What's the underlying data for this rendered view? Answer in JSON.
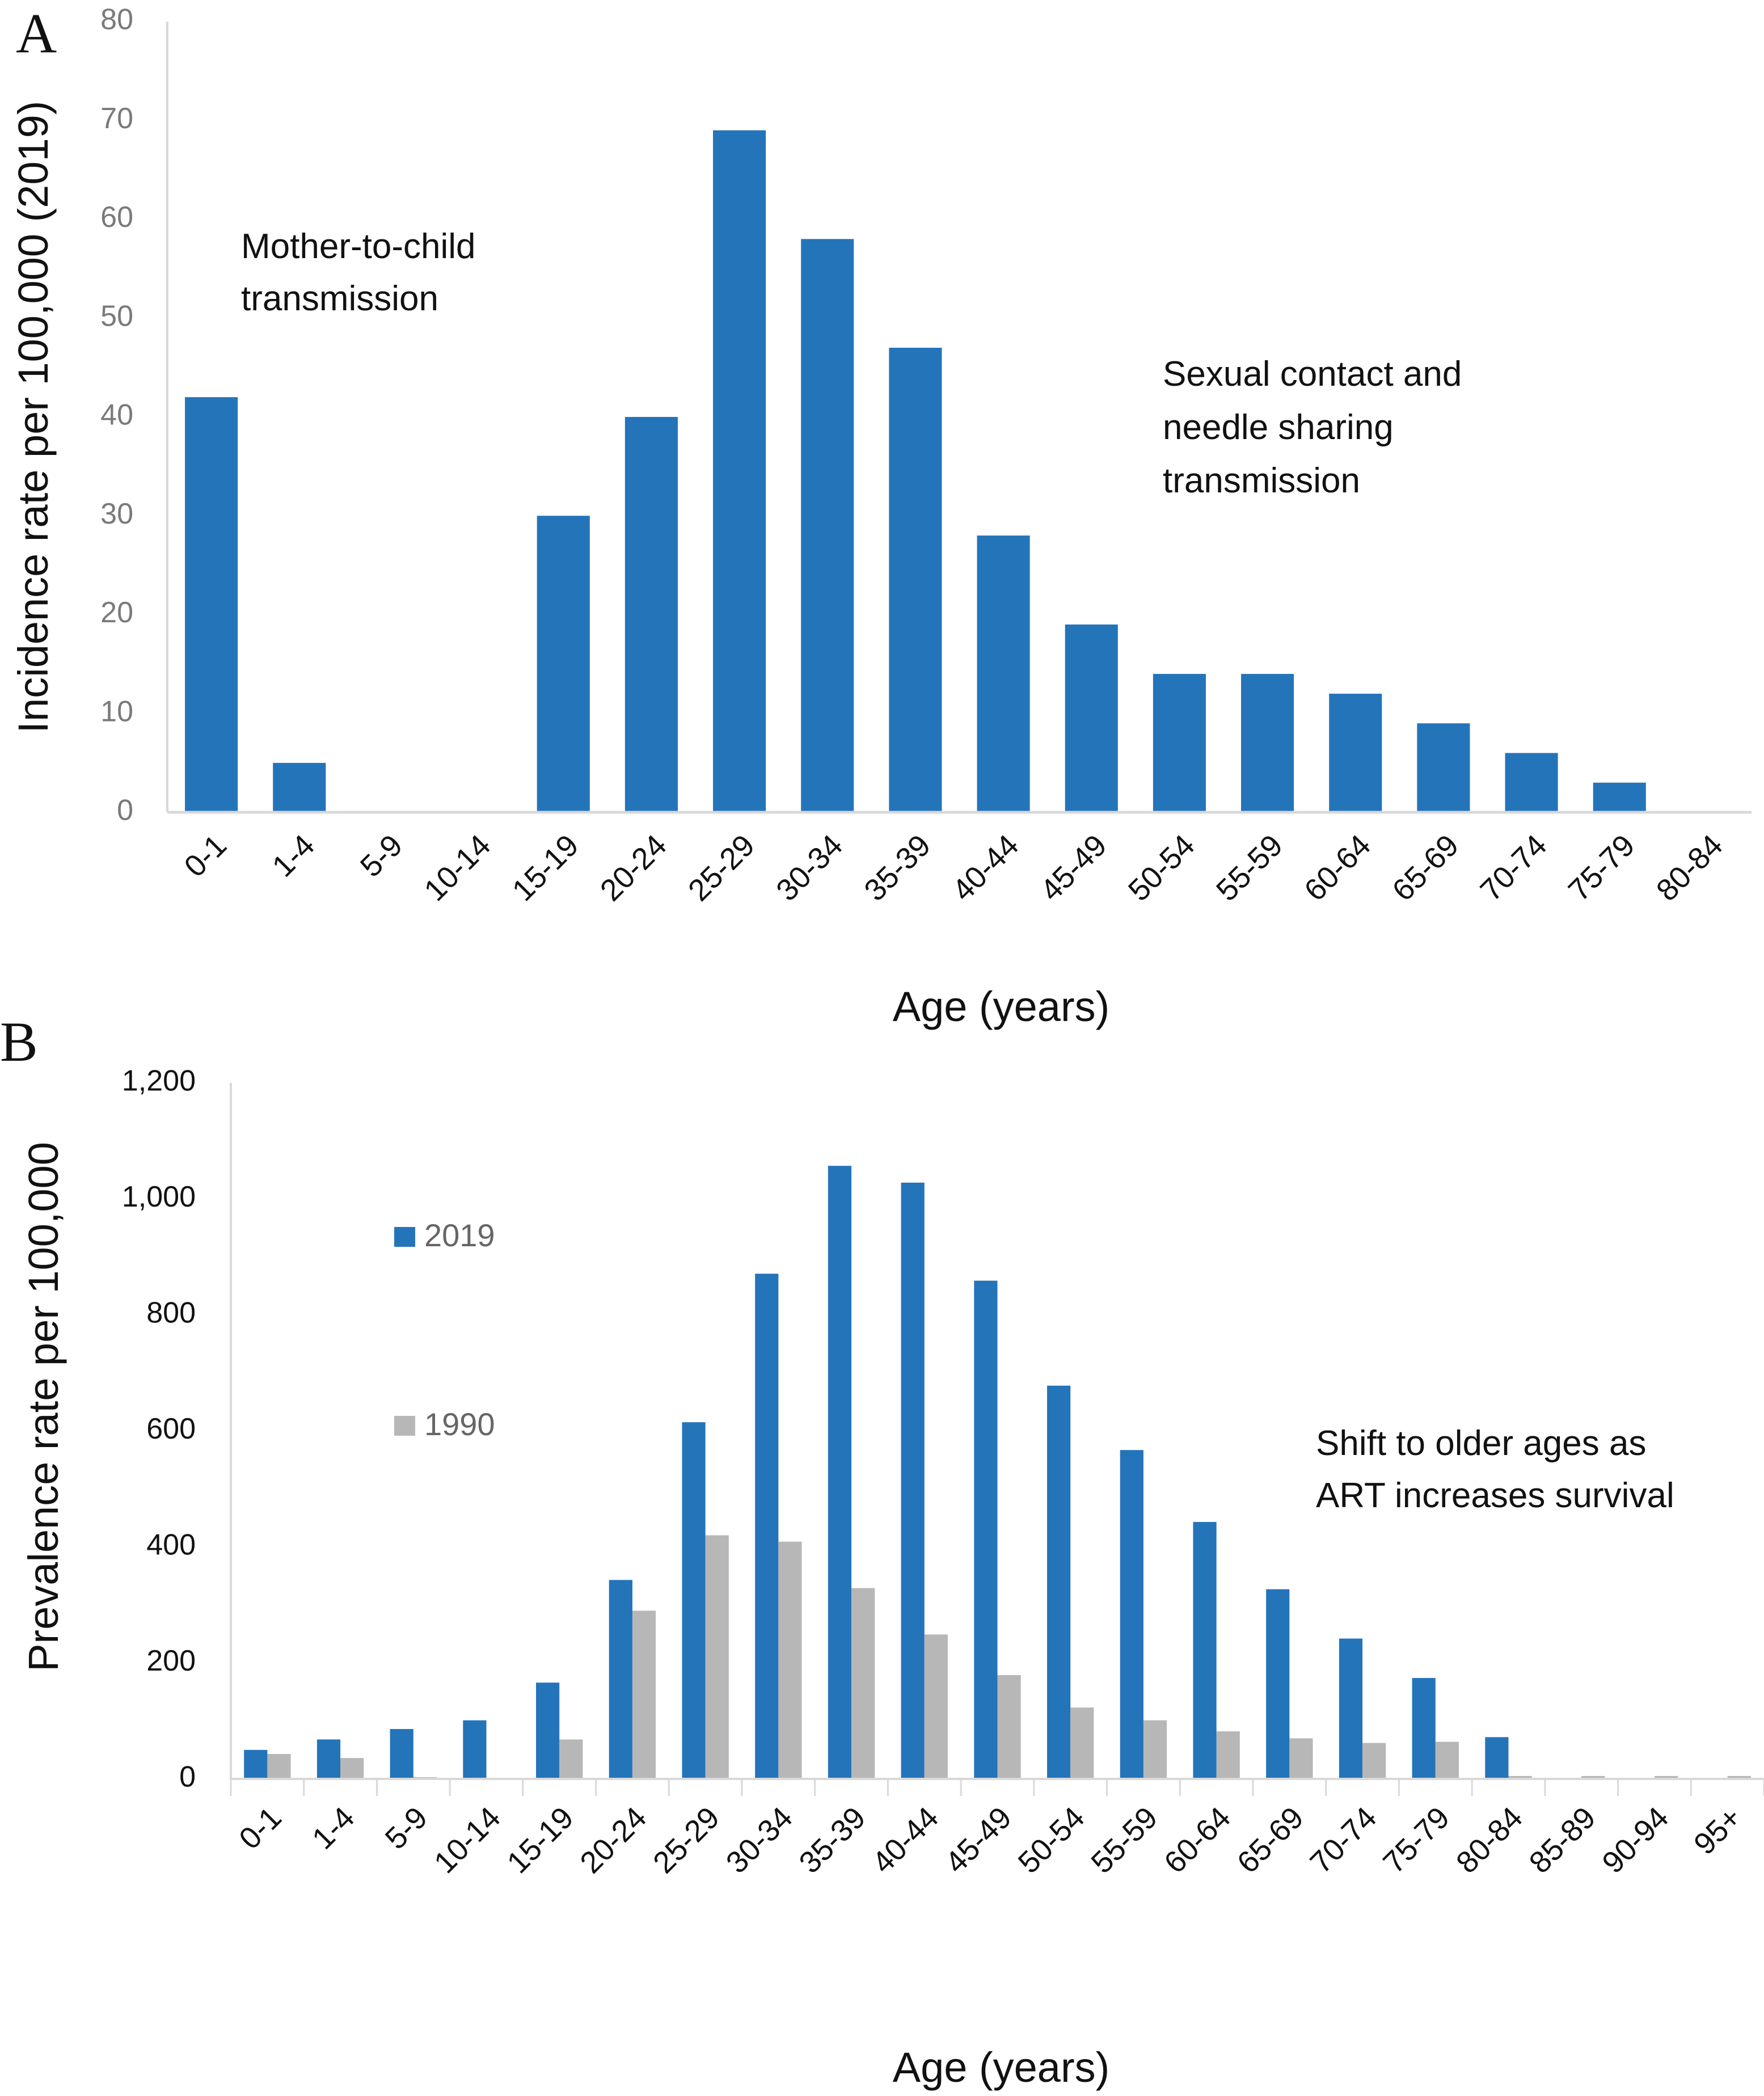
{
  "figure": {
    "panel_a_letter": "A",
    "panel_b_letter": "B"
  },
  "colors": {
    "series_2019": "#2474BA",
    "series_1990": "#B7B7B7",
    "axis": "#D9D9D9"
  },
  "chart_data": [
    {
      "type": "bar",
      "panel": "A",
      "title": "",
      "xlabel": "Age (years)",
      "ylabel": "Incidence rate per 100,000 (2019)",
      "ylim": [
        0,
        80
      ],
      "yticks": [
        "0",
        "10",
        "20",
        "30",
        "40",
        "50",
        "60",
        "70",
        "80"
      ],
      "ytick_values": [
        0,
        10,
        20,
        30,
        40,
        50,
        60,
        70,
        80
      ],
      "grid": false,
      "categories": [
        "0-1",
        "1-4",
        "5-9",
        "10-14",
        "15-19",
        "20-24",
        "25-29",
        "30-34",
        "35-39",
        "40-44",
        "45-49",
        "50-54",
        "55-59",
        "60-64",
        "65-69",
        "70-74",
        "75-79",
        "80-84"
      ],
      "series": [
        {
          "name": "2019",
          "values": [
            42,
            5,
            0,
            0,
            30,
            40,
            69,
            58,
            47,
            28,
            19,
            14,
            14,
            12,
            9,
            6,
            3,
            0
          ]
        }
      ],
      "annotations": [
        {
          "lines": [
            "Mother-to-child",
            "transmission"
          ]
        },
        {
          "lines": [
            "Sexual contact and",
            "needle sharing",
            "transmission"
          ]
        }
      ]
    },
    {
      "type": "bar",
      "panel": "B",
      "title": "",
      "xlabel": "Age (years)",
      "ylabel": "Prevalence rate per 100,000",
      "ylim": [
        0,
        1200
      ],
      "yticks": [
        "0",
        "200",
        "400",
        "600",
        "800",
        "1,000",
        "1,200"
      ],
      "ytick_values": [
        0,
        200,
        400,
        600,
        800,
        1000,
        1200
      ],
      "grid": false,
      "legend_position": "upper-left",
      "categories": [
        "0-1",
        "1-4",
        "5-9",
        "10-14",
        "15-19",
        "20-24",
        "25-29",
        "30-34",
        "35-39",
        "40-44",
        "45-49",
        "50-54",
        "55-59",
        "60-64",
        "65-69",
        "70-74",
        "75-79",
        "80-84",
        "85-89",
        "90-94",
        "95+"
      ],
      "series": [
        {
          "name": "2019",
          "values": [
            50,
            68,
            86,
            101,
            166,
            343,
            615,
            871,
            1057,
            1028,
            859,
            678,
            567,
            443,
            327,
            242,
            174,
            72,
            0,
            0,
            0
          ]
        },
        {
          "name": "1990",
          "values": [
            43,
            36,
            3,
            0,
            68,
            290,
            420,
            409,
            329,
            249,
            179,
            123,
            101,
            82,
            70,
            62,
            64,
            5,
            5,
            5,
            5
          ]
        }
      ],
      "annotations": [
        {
          "lines": [
            "Shift to older ages as",
            "ART increases survival"
          ]
        }
      ]
    }
  ]
}
